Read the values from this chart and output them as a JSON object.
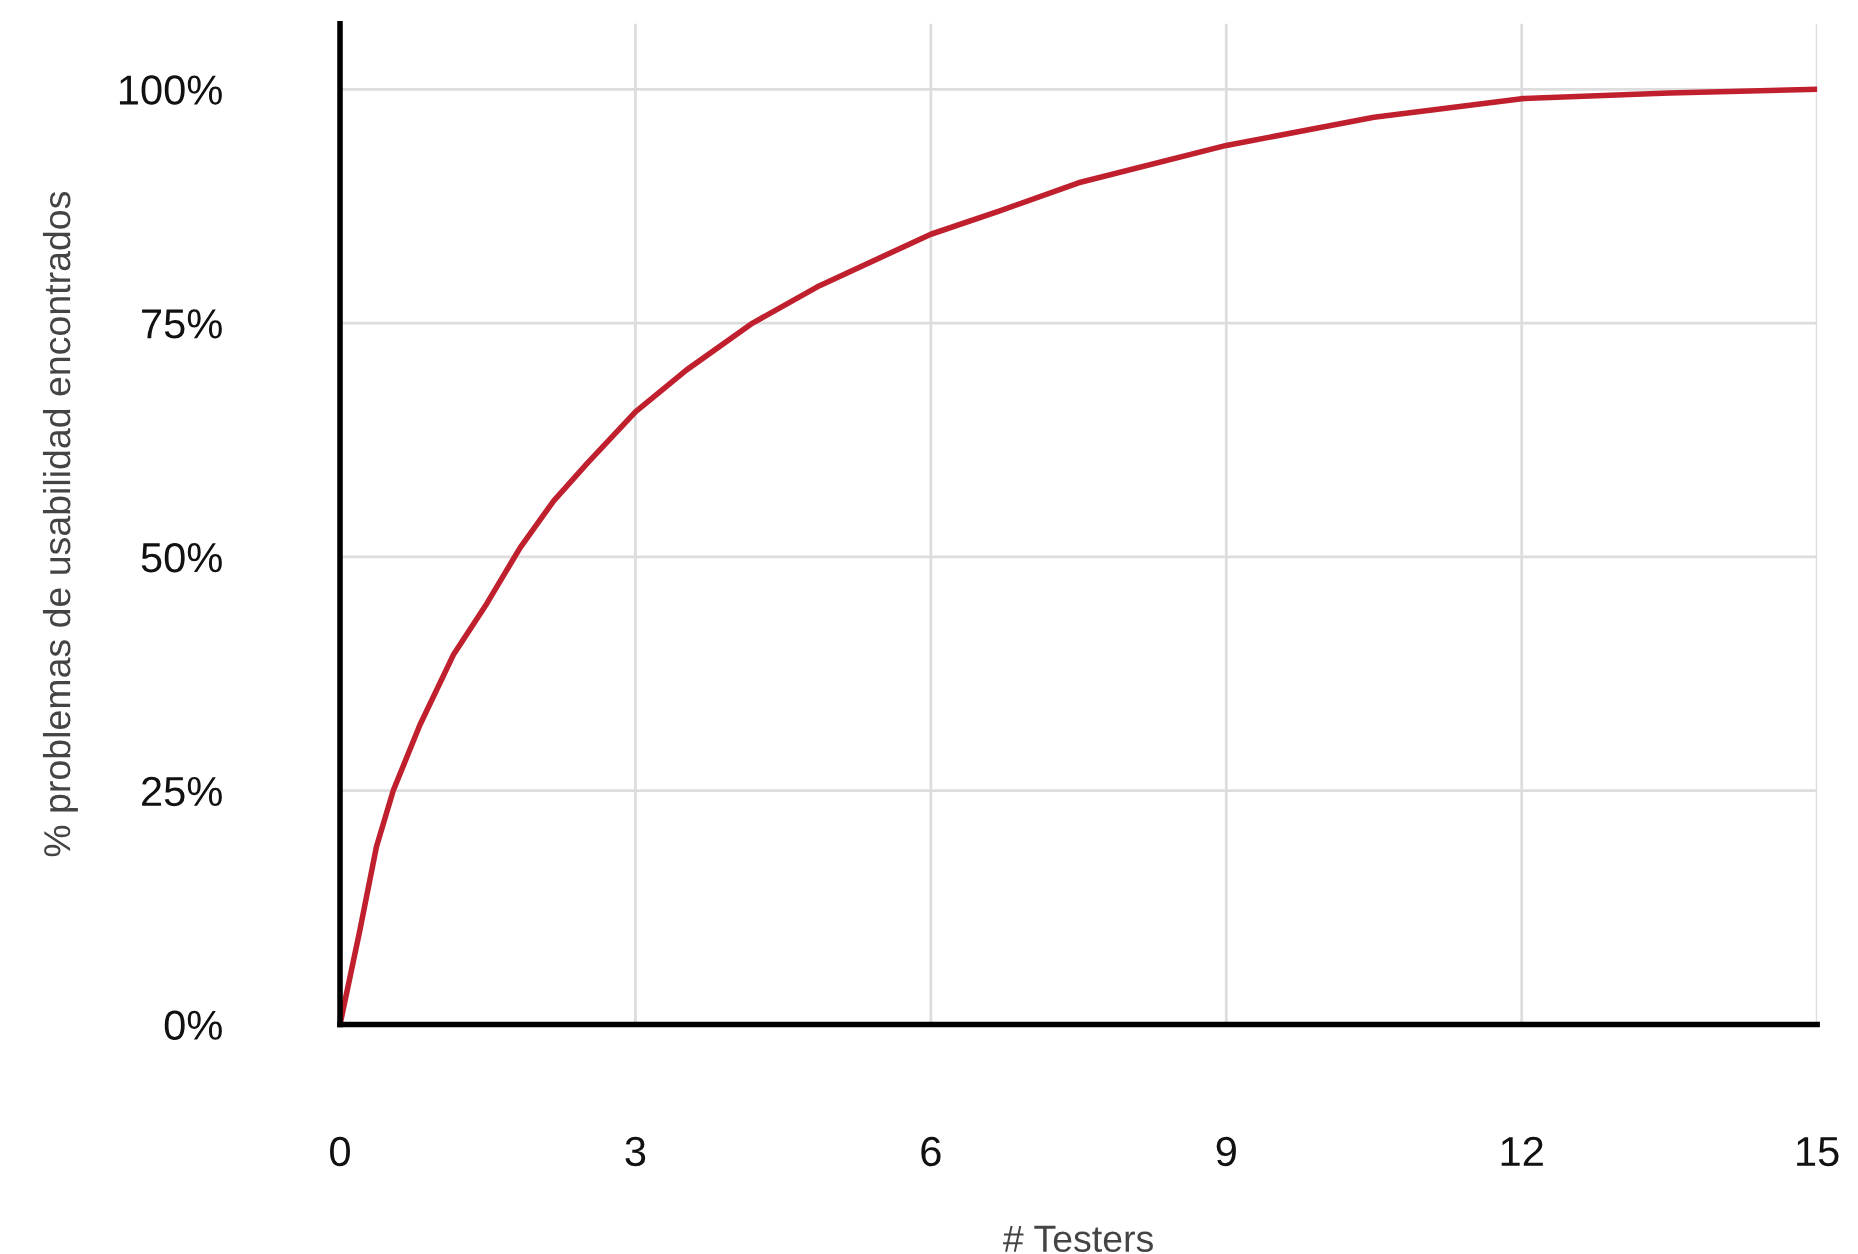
{
  "chart_data": {
    "type": "line",
    "xlabel": "# Testers",
    "ylabel": "% problemas de usabilidad encontrados",
    "series": [
      {
        "color": "#c0202e",
        "x": [
          0,
          0.2,
          0.37,
          0.54,
          0.81,
          1.15,
          1.49,
          1.83,
          2.17,
          2.51,
          3.0,
          3.52,
          4.19,
          4.87,
          6.0,
          6.7,
          7.5,
          9.0,
          10.5,
          12.0,
          13.5,
          15.0
        ],
        "values": [
          0,
          10,
          19,
          25,
          32,
          39.5,
          45,
          51,
          56,
          60,
          65.5,
          70,
          75,
          79,
          84.5,
          87,
          90,
          94,
          97,
          99,
          99.6,
          100
        ]
      }
    ],
    "xlim": [
      0,
      15
    ],
    "xticks": [
      0,
      3,
      6,
      9,
      12,
      15
    ],
    "ylim": [
      0,
      107
    ],
    "yticks": [
      {
        "value": 0,
        "label": "0%"
      },
      {
        "value": 25,
        "label": "25%"
      },
      {
        "value": 50,
        "label": "50%"
      },
      {
        "value": 75,
        "label": "75%"
      },
      {
        "value": 100,
        "label": "100%"
      }
    ],
    "grid": true,
    "legend": false,
    "marker": "none",
    "line_style": "solid"
  }
}
